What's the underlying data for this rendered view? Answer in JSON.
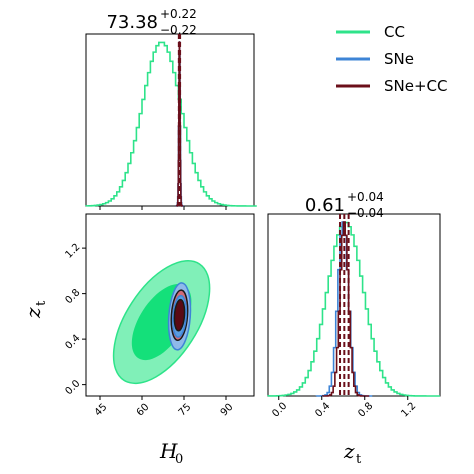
{
  "chart_data": {
    "type": "corner",
    "colors": {
      "cc": "#2ee38a",
      "sne": "#3d84d6",
      "combined": "#6b0f1a"
    },
    "legend": {
      "placement": "top-right",
      "entries": [
        {
          "key": "cc",
          "label": "CC"
        },
        {
          "key": "sne",
          "label": "SNe"
        },
        {
          "key": "combined",
          "label": "SNe+CC"
        }
      ]
    },
    "parameters": [
      {
        "key": "H0",
        "axis_label": "H",
        "axis_sub": "0",
        "range": [
          40,
          100
        ],
        "ticks": [
          45,
          60,
          75,
          90
        ],
        "tick_labels": [
          "45",
          "60",
          "75",
          "90"
        ],
        "title_value": "73.38",
        "title_plus": "+0.22",
        "title_minus": "−0.22",
        "summary": {
          "median": 73.38,
          "lo": 73.16,
          "hi": 73.6
        }
      },
      {
        "key": "zt",
        "axis_label": "z",
        "axis_sub": "t",
        "range": [
          -0.1,
          1.5
        ],
        "ticks": [
          0.0,
          0.4,
          0.8,
          1.2
        ],
        "tick_labels": [
          "0.0",
          "0.4",
          "0.8",
          "1.2"
        ],
        "title_value": "0.61",
        "title_plus": "+0.04",
        "title_minus": "−0.04",
        "summary": {
          "median": 0.61,
          "lo": 0.57,
          "hi": 0.65
        }
      }
    ],
    "marginals": [
      {
        "param": "H0",
        "series": [
          {
            "key": "cc",
            "mean": 67.0,
            "sd": 7.0
          },
          {
            "key": "sne",
            "mean": 73.4,
            "sd": 0.25
          },
          {
            "key": "combined",
            "mean": 73.38,
            "sd": 0.22
          }
        ]
      },
      {
        "param": "zt",
        "series": [
          {
            "key": "cc",
            "mean": 0.62,
            "sd": 0.17
          },
          {
            "key": "sne",
            "mean": 0.6,
            "sd": 0.05
          },
          {
            "key": "combined",
            "mean": 0.61,
            "sd": 0.04
          }
        ]
      }
    ],
    "joint": {
      "x": "H0",
      "y": "zt",
      "series": [
        {
          "key": "cc",
          "mean": [
            67,
            0.55
          ],
          "sd": [
            7,
            0.22
          ],
          "rho": 0.55
        },
        {
          "key": "sne",
          "mean": [
            73.4,
            0.6
          ],
          "sd": [
            1.6,
            0.12
          ],
          "rho": 0.2
        },
        {
          "key": "combined",
          "mean": [
            73.38,
            0.61
          ],
          "sd": [
            1.2,
            0.09
          ],
          "rho": 0.2
        }
      ]
    }
  }
}
